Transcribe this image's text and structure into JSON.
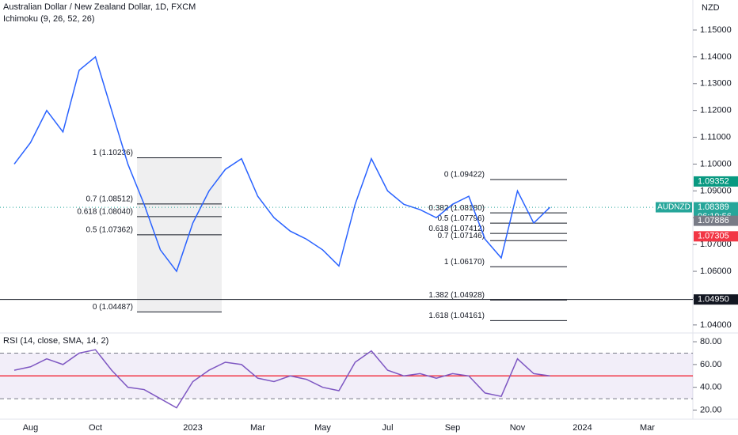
{
  "chart_data": [
    {
      "type": "line",
      "title": "Australian Dollar / New Zealand Dollar, 1D, FXCM",
      "subtitle": "Ichimoku (9, 26, 52, 26)",
      "currency": "NZD",
      "categories": [
        null,
        "Aug",
        null,
        null,
        null,
        "Oct",
        null,
        null,
        null,
        null,
        null,
        "2023",
        null,
        null,
        null,
        "Mar",
        null,
        null,
        null,
        "May",
        null,
        null,
        null,
        "Jul",
        null,
        null,
        null,
        "Sep",
        null,
        null,
        null,
        "Nov",
        null,
        null,
        null,
        "2024",
        null,
        null,
        null,
        "Mar",
        null,
        null
      ],
      "series": [
        {
          "color": "#2962ff",
          "values": [
            1.1,
            1.108,
            1.12,
            1.112,
            1.135,
            1.14,
            1.12,
            1.1,
            1.085,
            1.068,
            1.06,
            1.078,
            1.09,
            1.098,
            1.102,
            1.088,
            1.08,
            1.075,
            1.072,
            1.068,
            1.062,
            1.085,
            1.102,
            1.09,
            1.085,
            1.083,
            1.08,
            1.085,
            1.088,
            1.072,
            1.065,
            1.09,
            1.078,
            1.08389,
            null,
            null,
            null,
            null,
            null,
            null,
            null,
            null
          ]
        }
      ],
      "ylim": [
        1.0373,
        1.1612
      ],
      "yticks": [
        {
          "value": 1.04,
          "label": "1.04000"
        },
        {
          "value": 1.05,
          "label": "1.05000"
        },
        {
          "value": 1.06,
          "label": "1.06000"
        },
        {
          "value": 1.07,
          "label": "1.07000"
        },
        {
          "value": 1.08,
          "label": "1.08000"
        },
        {
          "value": 1.09,
          "label": "1.09000"
        },
        {
          "value": 1.1,
          "label": "1.10000"
        },
        {
          "value": 1.11,
          "label": "1.11000"
        },
        {
          "value": 1.12,
          "label": "1.12000"
        },
        {
          "value": 1.13,
          "label": "1.13000"
        },
        {
          "value": 1.14,
          "label": "1.14000"
        },
        {
          "value": 1.15,
          "label": "1.15000"
        }
      ],
      "fib_retracement_1": [
        {
          "label": "1 (1.10236)",
          "value": 1.10236
        },
        {
          "label": "0.7 (1.08512)",
          "value": 1.08512
        },
        {
          "label": "0.618 (1.08040)",
          "value": 1.0804
        },
        {
          "label": "0.5 (1.07362)",
          "value": 1.07362
        },
        {
          "label": "0 (1.04487)",
          "value": 1.04487
        }
      ],
      "fib_retracement_2": [
        {
          "label": "0 (1.09422)",
          "value": 1.09422
        },
        {
          "label": "0.382 (1.08180)",
          "value": 1.0818
        },
        {
          "label": "0.5 (1.07796)",
          "value": 1.07796
        },
        {
          "label": "0.618 (1.07412)",
          "value": 1.07412
        },
        {
          "label": "0.7 (1.07146)",
          "value": 1.07146
        },
        {
          "label": "1 (1.06170)",
          "value": 1.0617
        },
        {
          "label": "1.382 (1.04928)",
          "value": 1.04928
        },
        {
          "label": "1.618 (1.04161)",
          "value": 1.04161
        }
      ],
      "price_labels": [
        {
          "value": 1.09352,
          "color": "#089981"
        },
        {
          "value": 1.08389,
          "symbol": "AUDNZD",
          "countdown": "06:19:56",
          "color": "#26a69a",
          "line": "dotted"
        },
        {
          "value": 1.07886,
          "color": "#787b86"
        },
        {
          "value": 1.07305,
          "color": "#f23645"
        },
        {
          "value": 1.0495,
          "label": "1.04950",
          "color": "#131722",
          "line": "solid"
        }
      ]
    },
    {
      "type": "line",
      "title": "RSI (14, close, SMA, 14, 2)",
      "series": [
        {
          "color": "#7e57c2",
          "values": [
            55,
            58,
            65,
            60,
            70,
            73,
            55,
            40,
            38,
            30,
            22,
            45,
            55,
            62,
            60,
            48,
            45,
            50,
            47,
            40,
            37,
            62,
            72,
            55,
            50,
            52,
            48,
            52,
            50,
            35,
            32,
            65,
            52,
            50,
            null,
            null,
            null,
            null,
            null,
            null,
            null,
            null
          ]
        }
      ],
      "ylim": [
        12,
        87
      ],
      "yticks": [
        {
          "value": 20,
          "label": "20.00"
        },
        {
          "value": 40,
          "label": "40.00"
        },
        {
          "value": 60,
          "label": "60.00"
        },
        {
          "value": 80,
          "label": "80.00"
        }
      ],
      "upper_band": 70,
      "middle_line": 50,
      "lower_band": 30
    }
  ]
}
